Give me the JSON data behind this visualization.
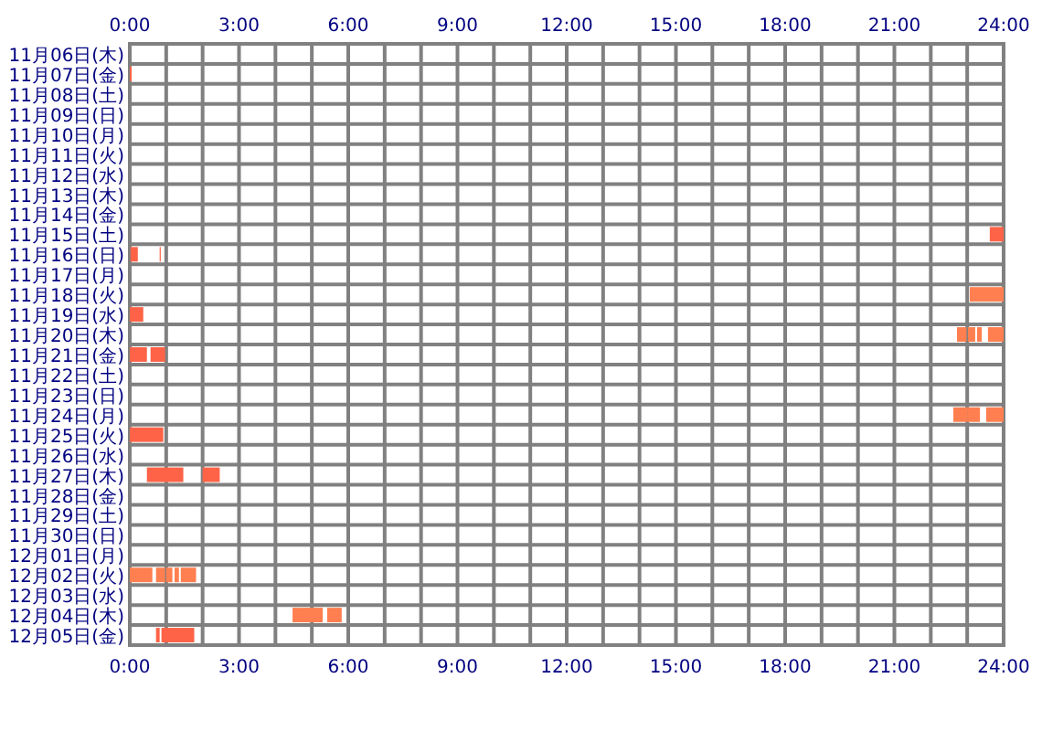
{
  "chart_data": {
    "type": "bar",
    "orientation": "horizontal",
    "grid": true,
    "categories": [
      "11月06日(木)",
      "11月07日(金)",
      "11月08日(土)",
      "11月09日(日)",
      "11月10日(月)",
      "11月11日(火)",
      "11月12日(水)",
      "11月13日(木)",
      "11月14日(金)",
      "11月15日(土)",
      "11月16日(日)",
      "11月17日(月)",
      "11月18日(火)",
      "11月19日(水)",
      "11月20日(木)",
      "11月21日(金)",
      "11月22日(土)",
      "11月23日(日)",
      "11月24日(月)",
      "11月25日(火)",
      "11月26日(水)",
      "11月27日(木)",
      "11月28日(金)",
      "11月29日(土)",
      "11月30日(日)",
      "12月01日(月)",
      "12月02日(火)",
      "12月03日(水)",
      "12月04日(木)",
      "12月05日(金)"
    ],
    "xlim": [
      0,
      24
    ],
    "xticks": [
      {
        "value": 0,
        "label": "0:00"
      },
      {
        "value": 1,
        "label": null
      },
      {
        "value": 2,
        "label": null
      },
      {
        "value": 3,
        "label": "3:00"
      },
      {
        "value": 4,
        "label": null
      },
      {
        "value": 5,
        "label": null
      },
      {
        "value": 6,
        "label": "6:00"
      },
      {
        "value": 7,
        "label": null
      },
      {
        "value": 8,
        "label": null
      },
      {
        "value": 9,
        "label": "9:00"
      },
      {
        "value": 10,
        "label": null
      },
      {
        "value": 11,
        "label": null
      },
      {
        "value": 12,
        "label": "12:00"
      },
      {
        "value": 13,
        "label": null
      },
      {
        "value": 14,
        "label": null
      },
      {
        "value": 15,
        "label": "15:00"
      },
      {
        "value": 16,
        "label": null
      },
      {
        "value": 17,
        "label": null
      },
      {
        "value": 18,
        "label": "18:00"
      },
      {
        "value": 19,
        "label": null
      },
      {
        "value": 20,
        "label": null
      },
      {
        "value": 21,
        "label": "21:00"
      },
      {
        "value": 22,
        "label": null
      },
      {
        "value": 23,
        "label": null
      },
      {
        "value": 24,
        "label": "24:00"
      }
    ],
    "x2lim": [
      0,
      24
    ],
    "x2ticks": [
      {
        "value": 0,
        "label": "0:00"
      },
      {
        "value": 1,
        "label": null
      },
      {
        "value": 2,
        "label": null
      },
      {
        "value": 3,
        "label": "3:00"
      },
      {
        "value": 4,
        "label": null
      },
      {
        "value": 5,
        "label": null
      },
      {
        "value": 6,
        "label": "6:00"
      },
      {
        "value": 7,
        "label": null
      },
      {
        "value": 8,
        "label": null
      },
      {
        "value": 9,
        "label": "9:00"
      },
      {
        "value": 10,
        "label": null
      },
      {
        "value": 11,
        "label": null
      },
      {
        "value": 12,
        "label": "12:00"
      },
      {
        "value": 13,
        "label": null
      },
      {
        "value": 14,
        "label": null
      },
      {
        "value": 15,
        "label": "15:00"
      },
      {
        "value": 16,
        "label": null
      },
      {
        "value": 17,
        "label": null
      },
      {
        "value": 18,
        "label": "18:00"
      },
      {
        "value": 19,
        "label": null
      },
      {
        "value": 20,
        "label": null
      },
      {
        "value": 21,
        "label": "21:00"
      },
      {
        "value": 22,
        "label": null
      },
      {
        "value": 23,
        "label": null
      },
      {
        "value": 24,
        "label": "24:00"
      }
    ],
    "series": [
      {
        "base": [
          null,
          0,
          null,
          null,
          null,
          null,
          null,
          null,
          null,
          23.62,
          0.02,
          null,
          23.07,
          0,
          22.72,
          0,
          null,
          null,
          22.62,
          0,
          null,
          0.47,
          null,
          null,
          null,
          null,
          0,
          null,
          4.47,
          0.72
        ],
        "values": [
          null,
          0.05,
          null,
          null,
          null,
          null,
          null,
          null,
          null,
          0.38,
          0.2,
          null,
          0.93,
          0.37,
          0.26,
          0.47,
          null,
          null,
          0.38,
          0.92,
          null,
          1.0,
          null,
          null,
          null,
          null,
          0.62,
          null,
          0.83,
          0.1
        ],
        "colors": [
          null,
          "#ff6347",
          null,
          null,
          null,
          null,
          null,
          null,
          null,
          "#ff6347",
          "#ff6347",
          null,
          "#ff7f50",
          "#ff6347",
          "#ff7f50",
          "#ff6347",
          null,
          null,
          "#ff7f50",
          "#ff6347",
          null,
          "#ff6347",
          null,
          null,
          null,
          null,
          "#ff7f50",
          null,
          "#ff7f50",
          "#ff6347"
        ]
      },
      {
        "base": [
          null,
          null,
          null,
          null,
          null,
          null,
          null,
          null,
          null,
          null,
          0.82,
          null,
          null,
          null,
          23.02,
          0.57,
          null,
          null,
          23,
          null,
          null,
          2.0,
          null,
          null,
          null,
          null,
          0.72,
          null,
          5.42,
          0.87
        ],
        "values": [
          null,
          null,
          null,
          null,
          null,
          null,
          null,
          null,
          null,
          null,
          0.03,
          null,
          null,
          null,
          0.2,
          0.4,
          null,
          null,
          0.35,
          null,
          null,
          0.47,
          null,
          null,
          null,
          null,
          0.25,
          null,
          0.4,
          0.9
        ],
        "colors": [
          null,
          null,
          null,
          null,
          null,
          null,
          null,
          null,
          null,
          null,
          "#ff6347",
          null,
          null,
          null,
          "#ff7f50",
          "#ff6347",
          null,
          null,
          "#ff7f50",
          null,
          null,
          "#ff6347",
          null,
          null,
          null,
          null,
          "#ff7f50",
          null,
          "#ff7f50",
          "#ff6347"
        ]
      },
      {
        "color": "#ff7f50",
        "base": [
          null,
          null,
          null,
          null,
          null,
          null,
          null,
          null,
          null,
          null,
          null,
          null,
          null,
          null,
          23.27,
          null,
          null,
          null,
          23.52,
          null,
          null,
          null,
          null,
          null,
          null,
          null,
          1.0,
          null,
          null,
          null
        ],
        "values": [
          null,
          null,
          null,
          null,
          null,
          null,
          null,
          null,
          null,
          null,
          null,
          null,
          null,
          null,
          0.13,
          null,
          null,
          null,
          0.48,
          null,
          null,
          null,
          null,
          null,
          null,
          null,
          0.17,
          null,
          null,
          null
        ]
      },
      {
        "color": "#ff7f50",
        "base": [
          null,
          null,
          null,
          null,
          null,
          null,
          null,
          null,
          null,
          null,
          null,
          null,
          null,
          null,
          23.57,
          null,
          null,
          null,
          null,
          null,
          null,
          null,
          null,
          null,
          null,
          null,
          1.23,
          null,
          null,
          null
        ],
        "values": [
          null,
          null,
          null,
          null,
          null,
          null,
          null,
          null,
          null,
          null,
          null,
          null,
          null,
          null,
          0.43,
          null,
          null,
          null,
          null,
          null,
          null,
          null,
          null,
          null,
          null,
          null,
          0.12,
          null,
          null,
          null
        ]
      },
      {
        "color": "#ff7f50",
        "base": [
          null,
          null,
          null,
          null,
          null,
          null,
          null,
          null,
          null,
          null,
          null,
          null,
          null,
          null,
          null,
          null,
          null,
          null,
          null,
          null,
          null,
          null,
          null,
          null,
          null,
          null,
          1.4,
          null,
          null,
          null
        ],
        "values": [
          null,
          null,
          null,
          null,
          null,
          null,
          null,
          null,
          null,
          null,
          null,
          null,
          null,
          null,
          null,
          null,
          null,
          null,
          null,
          null,
          null,
          null,
          null,
          null,
          null,
          null,
          0.42,
          null,
          null,
          null
        ]
      }
    ]
  }
}
